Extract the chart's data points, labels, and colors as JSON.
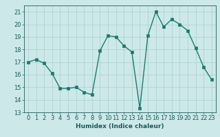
{
  "x": [
    0,
    1,
    2,
    3,
    4,
    5,
    6,
    7,
    8,
    9,
    10,
    11,
    12,
    13,
    14,
    15,
    16,
    17,
    18,
    19,
    20,
    21,
    22,
    23
  ],
  "y": [
    17.0,
    17.2,
    16.9,
    16.1,
    14.9,
    14.9,
    15.0,
    14.6,
    14.4,
    17.9,
    19.1,
    19.0,
    18.3,
    17.8,
    13.3,
    19.1,
    21.0,
    19.8,
    20.4,
    20.0,
    19.5,
    18.1,
    16.6,
    15.6
  ],
  "xlim": [
    -0.5,
    23.5
  ],
  "ylim": [
    13,
    21.5
  ],
  "yticks": [
    13,
    14,
    15,
    16,
    17,
    18,
    19,
    20,
    21
  ],
  "xticks": [
    0,
    1,
    2,
    3,
    4,
    5,
    6,
    7,
    8,
    9,
    10,
    11,
    12,
    13,
    14,
    15,
    16,
    17,
    18,
    19,
    20,
    21,
    22,
    23
  ],
  "xlabel": "Humidex (Indice chaleur)",
  "line_color": "#1a7a6e",
  "bg_color": "#cce8e8",
  "grid_color": "#aacece",
  "tick_label_color": "#1a5a5a",
  "xlabel_color": "#1a5a5a",
  "marker": "s",
  "marker_size": 2.5,
  "linewidth": 1.0,
  "axis_fontsize": 6.5,
  "tick_fontsize": 6.0
}
